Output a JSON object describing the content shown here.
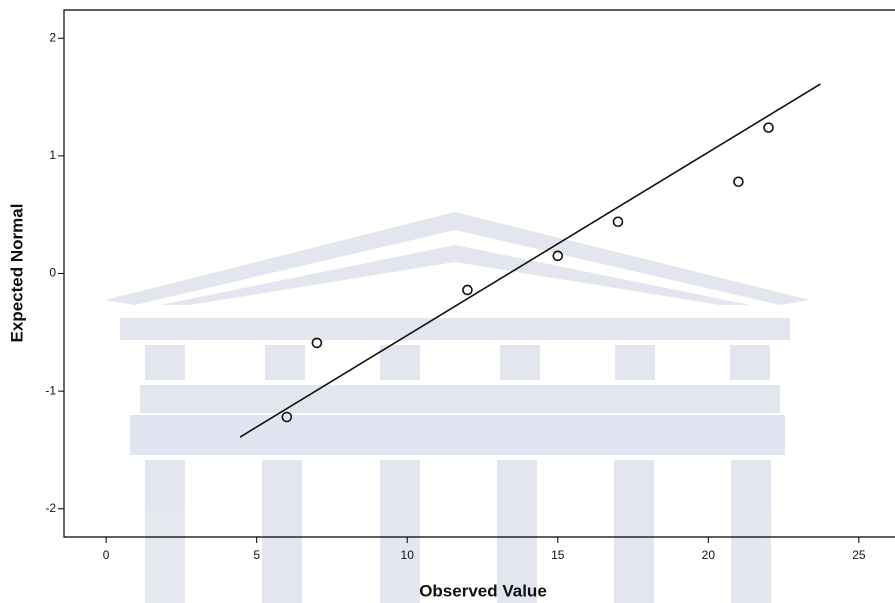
{
  "chart_data": {
    "type": "scatter",
    "x_label": "Observed Value",
    "y_label": "Expected Normal",
    "x": [
      6,
      7,
      12,
      15,
      17,
      21,
      22
    ],
    "values": [
      -1.22,
      -0.59,
      -0.14,
      0.15,
      0.44,
      0.78,
      1.24
    ],
    "fit_line": {
      "x": [
        4.45,
        23.72
      ],
      "values": [
        -1.39,
        1.61
      ]
    },
    "xlim": [
      -1.4,
      26.2
    ],
    "ylim": [
      -2.24,
      2.24
    ],
    "xticks": [
      0,
      5,
      10,
      15,
      20,
      25
    ],
    "yticks": [
      -2,
      -1,
      0,
      1,
      2
    ],
    "color": "#111111"
  }
}
